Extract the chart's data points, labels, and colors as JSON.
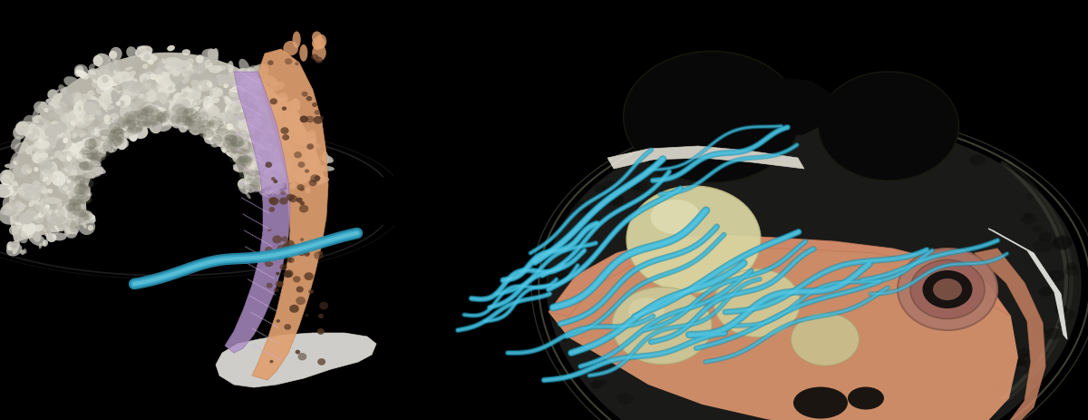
{
  "background_color": "#000000",
  "figure_width": 12.0,
  "figure_height": 4.64,
  "dpi": 100,
  "colors": {
    "cryo_gray_light": "#d8d5c8",
    "cryo_gray_mid": "#b8b5a8",
    "cryo_gray_dark": "#888078",
    "peach_membrane": "#e8a878",
    "peach_dark": "#c88858",
    "purple_imc": "#a080b8",
    "purple_dark": "#806898",
    "purple_stripe": "#c0a0d0",
    "white_blade": "#f0eeea",
    "cyan_actin": "#40b8d8",
    "cyan_light": "#70d0e8",
    "outer_black": "#0a0a0a",
    "cell_body": "#141414",
    "cell_dark": "#1c1c20",
    "inner_peach": "#e8a070",
    "inner_peach2": "#d09068",
    "nucleus_cream": "#d8d4a8",
    "nucleus_light": "#e8e4c0",
    "nucleus_shadow": "#c0bc90",
    "rhoptry_body": "#b07868",
    "rhoptry_mid": "#906050",
    "rhoptry_dark": "#201818",
    "cell_edge": "#505040",
    "glass_edge": "#888870",
    "top_dome_left": "#0d0d0d",
    "top_dome_right": "#101010",
    "peach_inner_belt": "#e09878",
    "dark_spot": "#080808",
    "white_sheet": "#f8f8f4",
    "left_glass_edge": "#4a4a50"
  }
}
